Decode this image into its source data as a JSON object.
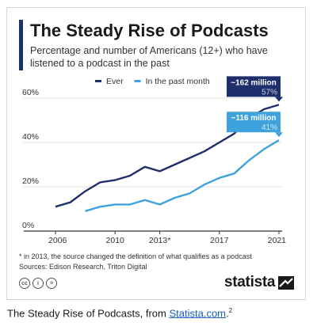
{
  "header": {
    "title": "The Steady Rise of Podcasts",
    "subtitle": "Percentage and number of Americans (12+) who have listened to a podcast in the past"
  },
  "chart_data": {
    "type": "line",
    "x_ticks": [
      "2006",
      "2010",
      "2013*",
      "2017",
      "2021"
    ],
    "y_ticks": [
      "0%",
      "20%",
      "40%",
      "60%"
    ],
    "xlim": [
      2006,
      2021
    ],
    "ylim": [
      0,
      60
    ],
    "grid": true,
    "legend_position": "top",
    "series": [
      {
        "name": "Ever",
        "color": "#1f2f6b",
        "x": [
          2006,
          2007,
          2008,
          2009,
          2010,
          2011,
          2012,
          2013,
          2014,
          2015,
          2016,
          2017,
          2018,
          2019,
          2020,
          2021
        ],
        "y": [
          11,
          13,
          18,
          22,
          23,
          25,
          29,
          27,
          30,
          33,
          36,
          40,
          44,
          51,
          55,
          57
        ]
      },
      {
        "name": "In the past month",
        "color": "#3ea3dc",
        "x": [
          2008,
          2009,
          2010,
          2011,
          2012,
          2013,
          2014,
          2015,
          2016,
          2017,
          2018,
          2019,
          2020,
          2021
        ],
        "y": [
          9,
          11,
          12,
          12,
          14,
          12,
          15,
          17,
          21,
          24,
          26,
          32,
          37,
          41
        ]
      }
    ],
    "annotations": [
      {
        "series": 0,
        "line1": "~162 million",
        "line2": "57%"
      },
      {
        "series": 1,
        "line1": "~116 million",
        "line2": "41%"
      }
    ]
  },
  "footer": {
    "note": "* in 2013, the source changed the definition of what qualifies as a podcast",
    "sources": "Sources: Edison Research, Triton Digital",
    "brand": "statista"
  },
  "caption": {
    "text": "The Steady Rise of Podcasts, from ",
    "link_text": "Statista.com",
    "after": ".",
    "footnote_ref": "2"
  }
}
